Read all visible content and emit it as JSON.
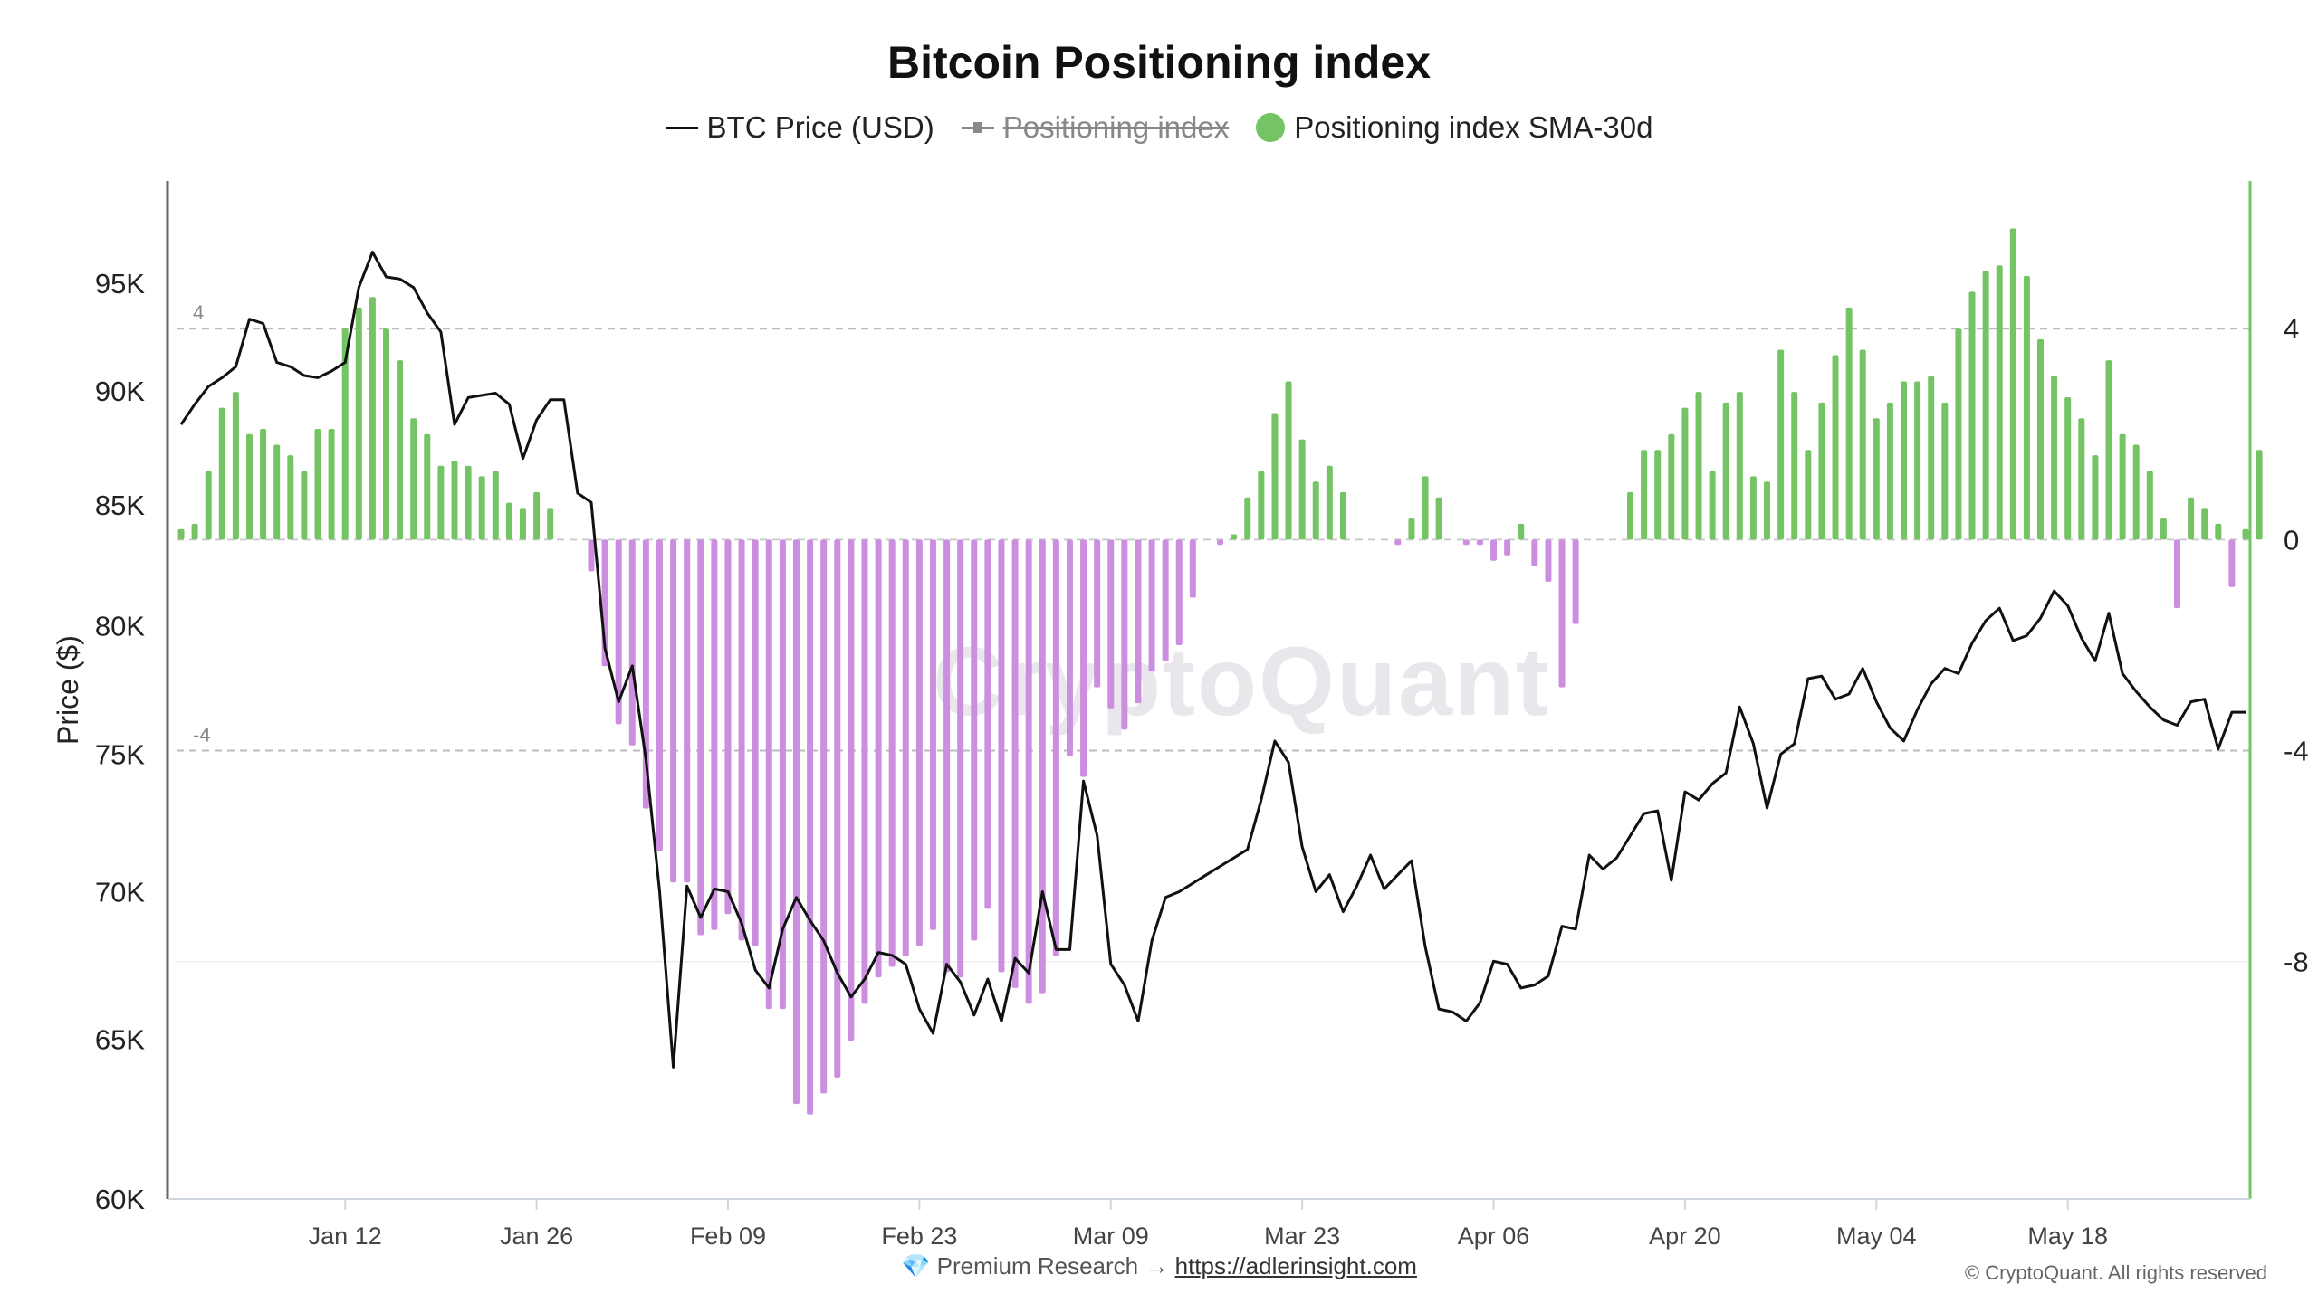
{
  "chart_data": {
    "type": "bar+line",
    "title": "Bitcoin Positioning index",
    "legend": [
      {
        "label": "BTC Price (USD)",
        "style": "line",
        "color": "#111111",
        "hidden": false
      },
      {
        "label": "Positioning index",
        "style": "line-marker",
        "color": "#888888",
        "hidden": true
      },
      {
        "label": "Positioning index SMA-30d",
        "style": "dot",
        "color": "#74c365",
        "hidden": false
      }
    ],
    "ylabel": "Price ($)",
    "ylim_left": [
      60000,
      100000
    ],
    "ylim_right": [
      -12.5,
      6.8
    ],
    "y_left_scale": "log",
    "left_ticks": [
      {
        "value": 60000,
        "label": "60K"
      },
      {
        "value": 65000,
        "label": "65K"
      },
      {
        "value": 70000,
        "label": "70K"
      },
      {
        "value": 75000,
        "label": "75K"
      },
      {
        "value": 80000,
        "label": "80K"
      },
      {
        "value": 85000,
        "label": "85K"
      },
      {
        "value": 90000,
        "label": "90K"
      },
      {
        "value": 95000,
        "label": "95K"
      }
    ],
    "right_ticks": [
      {
        "value": 4,
        "label": "4"
      },
      {
        "value": 0,
        "label": "0"
      },
      {
        "value": -4,
        "label": "-4"
      },
      {
        "value": -8,
        "label": "-8"
      }
    ],
    "reference_lines": [
      {
        "value": 4,
        "label": "4"
      },
      {
        "value": -4,
        "label": "-4"
      }
    ],
    "x_ticks": [
      "Jan 12",
      "Jan 26",
      "Feb 09",
      "Feb 23",
      "Mar 09",
      "Mar 23",
      "Apr 06",
      "Apr 20",
      "May 04",
      "May 18"
    ],
    "x_start": "Dec 31",
    "bar_colors": {
      "positive": "#74c365",
      "negative": "#cc8fe0"
    },
    "sma_30d": [
      0.2,
      0.3,
      1.3,
      2.5,
      2.8,
      2.0,
      2.1,
      1.8,
      1.6,
      1.3,
      2.1,
      2.1,
      4.0,
      4.4,
      4.6,
      4.0,
      3.4,
      2.3,
      2.0,
      1.4,
      1.5,
      1.4,
      1.2,
      1.3,
      0.7,
      0.6,
      0.9,
      0.6,
      0,
      0,
      -0.6,
      -2.4,
      -3.5,
      -3.9,
      -5.1,
      -5.9,
      -6.5,
      -6.5,
      -7.5,
      -7.4,
      -7.1,
      -7.6,
      -7.7,
      -8.9,
      -8.9,
      -10.7,
      -10.9,
      -10.5,
      -10.2,
      -9.5,
      -8.8,
      -8.3,
      -8.1,
      -7.9,
      -7.7,
      -7.4,
      -8.2,
      -8.3,
      -7.6,
      -7.0,
      -8.2,
      -8.5,
      -8.8,
      -8.6,
      -7.9,
      -4.1,
      -4.5,
      -2.8,
      -3.2,
      -3.6,
      -3.1,
      -2.5,
      -2.3,
      -2.0,
      -1.1,
      0,
      -0.1,
      0.1,
      0.8,
      1.3,
      2.4,
      3.0,
      1.9,
      1.1,
      1.4,
      0.9,
      0,
      0,
      0,
      -0.1,
      0.4,
      1.2,
      0.8,
      0,
      -0.1,
      -0.1,
      -0.4,
      -0.3,
      0.3,
      -0.5,
      -0.8,
      -2.8,
      -1.6,
      0,
      0,
      0,
      0.9,
      1.7,
      1.7,
      2.0,
      2.5,
      2.8,
      1.3,
      2.6,
      2.8,
      1.2,
      1.1,
      3.6,
      2.8,
      1.7,
      2.6,
      3.5,
      4.4,
      3.6,
      2.3,
      2.6,
      3.0,
      3.0,
      3.1,
      2.6,
      4.0,
      4.7,
      5.1,
      5.2,
      5.9,
      5.0,
      3.8,
      3.1,
      2.7,
      2.3,
      1.6,
      3.4,
      2.0,
      1.8,
      1.3,
      0.4,
      -1.3,
      0.8,
      0.6,
      0.3,
      -0.9,
      0.2,
      1.7
    ],
    "btc_price_usd": [
      88500,
      89400,
      90200,
      90600,
      91100,
      93300,
      93100,
      91300,
      91100,
      90700,
      90600,
      90900,
      91300,
      94800,
      96500,
      95300,
      95200,
      94800,
      93600,
      92700,
      88500,
      89700,
      89800,
      89900,
      89400,
      87000,
      88700,
      89600,
      89600,
      85500,
      85100,
      79100,
      77000,
      78400,
      74800,
      70000,
      64100,
      70200,
      69100,
      70100,
      70000,
      68900,
      67300,
      66700,
      68700,
      69800,
      69000,
      68300,
      67200,
      66400,
      67000,
      67900,
      67800,
      67500,
      66000,
      65200,
      67500,
      66900,
      65800,
      67000,
      65600,
      67700,
      67200,
      70000,
      68000,
      68000,
      74000,
      72000,
      67500,
      66800,
      65600,
      68300,
      69800,
      70000,
      70300,
      70600,
      70900,
      71200,
      71500,
      73300,
      75500,
      74700,
      71600,
      70000,
      70600,
      69300,
      70200,
      71300,
      70100,
      70600,
      71100,
      68100,
      66000,
      65900,
      65600,
      66200,
      67600,
      67500,
      66700,
      66800,
      67100,
      68800,
      68700,
      71300,
      70800,
      71200,
      72000,
      72800,
      72900,
      70400,
      73600,
      73300,
      73900,
      74300,
      76800,
      75400,
      73000,
      75000,
      75400,
      77900,
      78000,
      77100,
      77300,
      78300,
      77000,
      76000,
      75500,
      76700,
      77700,
      78300,
      78100,
      79300,
      80200,
      80700,
      79400,
      79600,
      80300,
      81400,
      80800,
      79500,
      78600,
      80500,
      78100,
      77400,
      76800,
      76300,
      76100,
      77000,
      77100,
      75200,
      76600,
      76600
    ]
  },
  "footer": {
    "gem_icon": "gem-icon",
    "research_label": "Premium Research",
    "arrow": "→",
    "link": "https://adlerinsight.com",
    "copyright": "© CryptoQuant. All rights reserved"
  },
  "watermark": "CryptoQuant"
}
